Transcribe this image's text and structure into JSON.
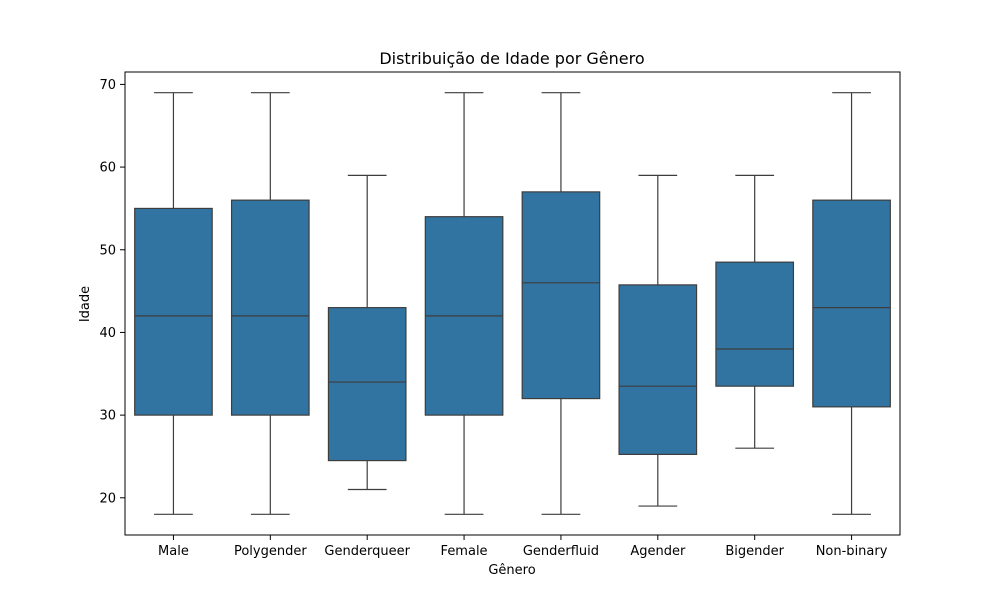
{
  "chart_data": {
    "type": "boxplot",
    "title": "Distribuição de Idade por Gênero",
    "xlabel": "Gênero",
    "ylabel": "Idade",
    "ylim": [
      15.5,
      71.5
    ],
    "yticks": [
      20,
      30,
      40,
      50,
      60,
      70
    ],
    "grid": false,
    "categories": [
      "Male",
      "Polygender",
      "Genderqueer",
      "Female",
      "Genderfluid",
      "Agender",
      "Bigender",
      "Non-binary"
    ],
    "boxes": [
      {
        "category": "Male",
        "whisker_low": 18,
        "q1": 30,
        "median": 42,
        "q3": 55,
        "whisker_high": 69
      },
      {
        "category": "Polygender",
        "whisker_low": 18,
        "q1": 30,
        "median": 42,
        "q3": 56,
        "whisker_high": 69
      },
      {
        "category": "Genderqueer",
        "whisker_low": 21,
        "q1": 24.5,
        "median": 34,
        "q3": 43,
        "whisker_high": 59
      },
      {
        "category": "Female",
        "whisker_low": 18,
        "q1": 30,
        "median": 42,
        "q3": 54,
        "whisker_high": 69
      },
      {
        "category": "Genderfluid",
        "whisker_low": 18,
        "q1": 32,
        "median": 46,
        "q3": 57,
        "whisker_high": 69
      },
      {
        "category": "Agender",
        "whisker_low": 19,
        "q1": 25.25,
        "median": 33.5,
        "q3": 45.75,
        "whisker_high": 59
      },
      {
        "category": "Bigender",
        "whisker_low": 26,
        "q1": 33.5,
        "median": 38,
        "q3": 48.5,
        "whisker_high": 59
      },
      {
        "category": "Non-binary",
        "whisker_low": 18,
        "q1": 31,
        "median": 43,
        "q3": 56,
        "whisker_high": 69
      }
    ],
    "colors": {
      "box_fill": "#3274a1",
      "line": "#3d3d3d",
      "axis": "#000000"
    }
  }
}
